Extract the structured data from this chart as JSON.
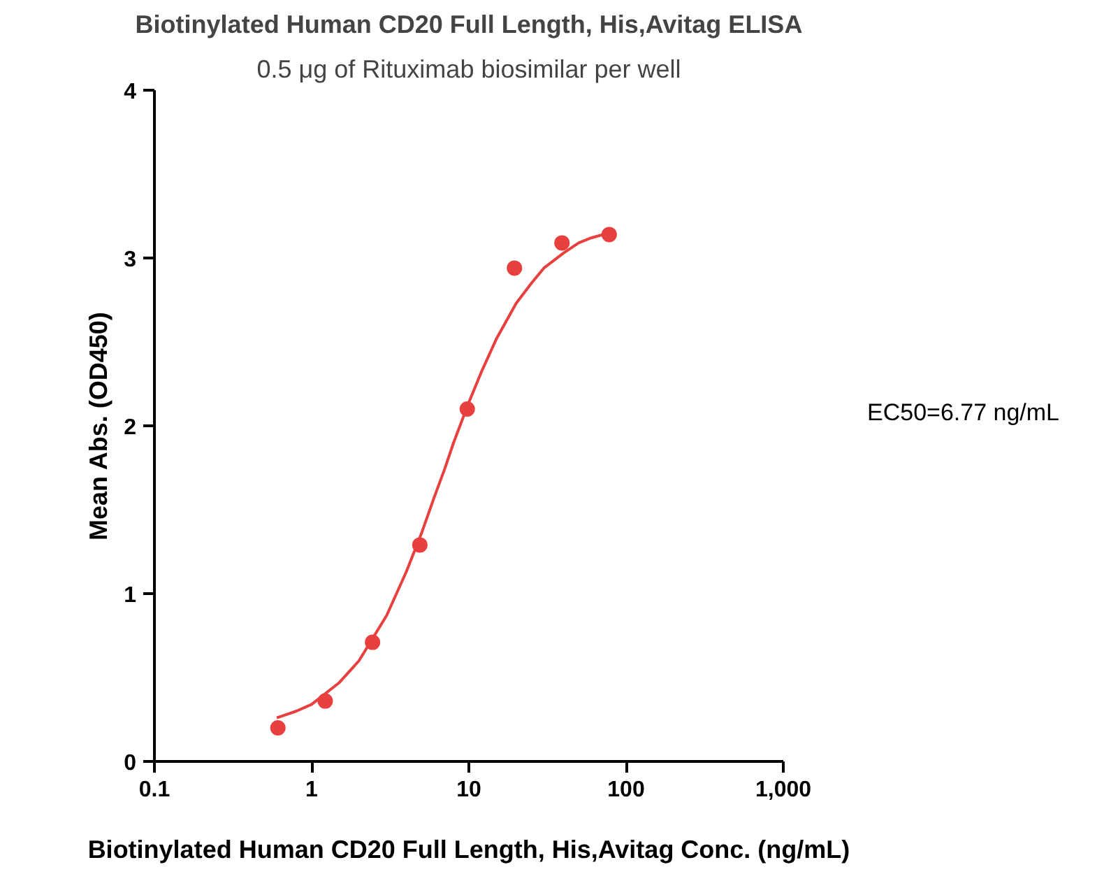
{
  "chart_data": {
    "type": "scatter",
    "title": "Biotinylated Human CD20 Full Length, His,Avitag ELISA",
    "subtitle": "0.5 μg of Rituximab biosimilar per well",
    "xlabel": "Biotinylated Human CD20 Full Length, His,Avitag Conc. (ng/mL)",
    "ylabel": "Mean Abs. (OD450)",
    "log": "x",
    "xlim": [
      0.1,
      1000
    ],
    "xticks": [
      0.1,
      1,
      10,
      100,
      {
        "value": 1000,
        "label": "1,000"
      }
    ],
    "ylim": [
      0,
      4
    ],
    "yticks": [
      0,
      1,
      2,
      3,
      4
    ],
    "grid": false,
    "annotations": [
      "EC50=6.77 ng/mL"
    ],
    "series": [
      {
        "marker": "circle",
        "color": "#e8403f",
        "x": [
          0.61,
          1.22,
          2.44,
          4.88,
          9.77,
          19.5,
          39.1,
          78.1
        ],
        "values": [
          0.2,
          0.36,
          0.71,
          1.29,
          2.1,
          2.94,
          3.09,
          3.14
        ]
      },
      {
        "type": "line",
        "line_style": "solid",
        "color": "#e8403f",
        "x": [
          0.6,
          0.8,
          1,
          1.5,
          2,
          3,
          4,
          5,
          6,
          7,
          8,
          10,
          12,
          15,
          20,
          25,
          30,
          40,
          50,
          60,
          78
        ],
        "values": [
          0.26,
          0.3,
          0.34,
          0.47,
          0.6,
          0.87,
          1.13,
          1.36,
          1.57,
          1.74,
          1.9,
          2.14,
          2.32,
          2.52,
          2.73,
          2.85,
          2.94,
          3.03,
          3.09,
          3.12,
          3.15
        ]
      }
    ]
  }
}
